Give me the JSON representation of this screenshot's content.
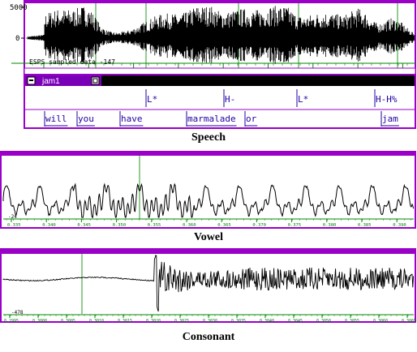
{
  "speech": {
    "y_top": "5000",
    "y_zero": "0",
    "status": "ESPS sampled data  -147",
    "time_ticks": [
      "0.80",
      "1.00",
      "1.20",
      "1.40",
      "1.60",
      "1.80",
      "2.00",
      "2.20",
      "2.40"
    ],
    "window_title": "jam1",
    "tones": [
      "L*",
      "H-",
      "L*",
      "H-H%"
    ],
    "words": [
      "will",
      "you",
      "have",
      "marmalade",
      "or",
      "jam"
    ],
    "caption": "Speech"
  },
  "vowel": {
    "amp_label": "-24",
    "time_ticks": [
      "0.335",
      "0.340",
      "0.345",
      "0.350",
      "0.355",
      "0.360",
      "0.365",
      "0.370",
      "0.375",
      "0.380",
      "0.385",
      "0.390"
    ],
    "caption": "Vowel"
  },
  "consonant": {
    "amp_label": "-478",
    "time_ticks": [
      "0.2995",
      "0.3000",
      "0.3005",
      "0.3010",
      "0.3015",
      "0.3020",
      "0.3025",
      "0.3030",
      "0.3035",
      "0.3040",
      "0.3045",
      "0.3050",
      "0.3055",
      "0.3060",
      "0.3065"
    ],
    "caption": "Consonant"
  },
  "colors": {
    "panel_border": "#9a00c8",
    "title_bar": "#7a00b8",
    "axis_tick": "#008800",
    "marker": "#2a9a2a",
    "tier_text": "#2000a0",
    "waveform": "#000000"
  }
}
